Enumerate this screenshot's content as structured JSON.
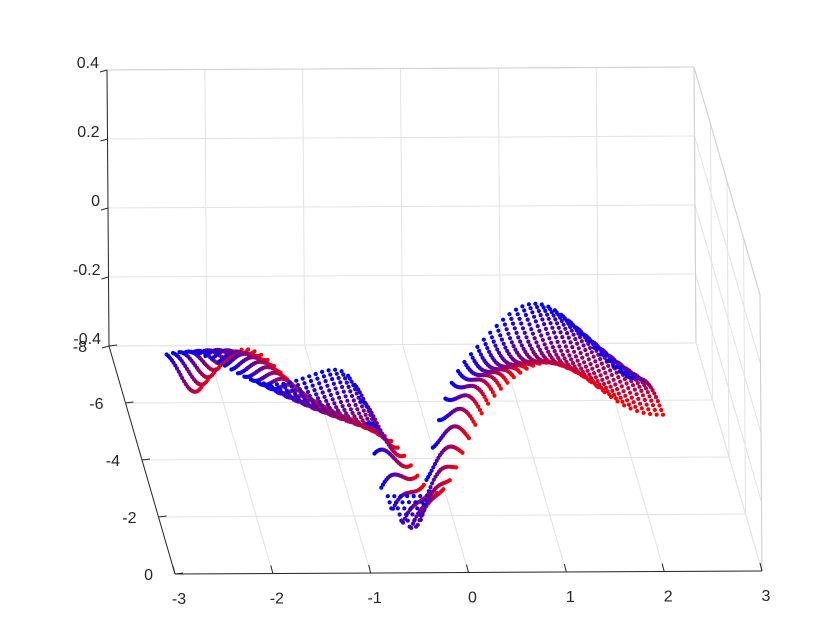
{
  "chart_data": {
    "type": "scatter",
    "plot_kind": "3d-point-cloud",
    "title": "",
    "xlabel": "",
    "ylabel": "",
    "zlabel": "",
    "xlim": [
      -3,
      3
    ],
    "ylim": [
      -8,
      0
    ],
    "zlim": [
      -0.4,
      0.4
    ],
    "x_ticks": [
      -3,
      -2,
      -1,
      0,
      1,
      2,
      3
    ],
    "x_tick_labels": [
      "-3",
      "-2",
      "-1",
      "0",
      "1",
      "2",
      "3"
    ],
    "y_ticks": [
      0,
      -2,
      -4,
      -6,
      -8
    ],
    "y_tick_labels": [
      "0",
      "-2",
      "-4",
      "-6",
      "-8"
    ],
    "z_ticks": [
      0.4,
      0.2,
      0,
      -0.2,
      -0.4
    ],
    "z_tick_labels": [
      "0.4",
      "0.2",
      "0",
      "-0.2",
      "-0.4"
    ],
    "grid": true,
    "box": true,
    "colormap": {
      "start": "#ff0000",
      "end": "#0000ff",
      "varies_with": "y"
    },
    "surface": {
      "x_range": [
        -2.7,
        2.0
      ],
      "y_range": [
        0,
        -4.5
      ],
      "x_samples": 72,
      "y_samples": 22,
      "description_z": "wavy ridge surface with a central trough near x=-0.3"
    }
  }
}
